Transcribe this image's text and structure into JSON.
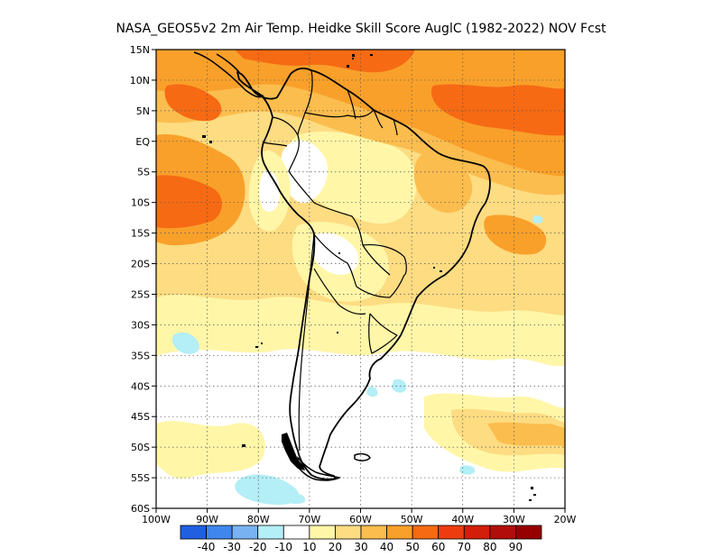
{
  "title": "NASA_GEOS5v2  2m Air Temp. Heidke Skill Score AuglC (1982-2022) NOV Fcst",
  "map": {
    "lat_labels": [
      "15N",
      "10N",
      "5N",
      "EQ",
      "5S",
      "10S",
      "15S",
      "20S",
      "25S",
      "30S",
      "35S",
      "40S",
      "45S",
      "50S",
      "55S",
      "60S"
    ],
    "lat_values": [
      15,
      10,
      5,
      0,
      -5,
      -10,
      -15,
      -20,
      -25,
      -30,
      -35,
      -40,
      -45,
      -50,
      -55,
      -60
    ],
    "lon_labels": [
      "100W",
      "90W",
      "80W",
      "70W",
      "60W",
      "50W",
      "40W",
      "30W",
      "20W"
    ],
    "lon_values": [
      -100,
      -90,
      -80,
      -70,
      -60,
      -50,
      -40,
      -30,
      -20
    ],
    "lon_range": [
      -100,
      -20
    ],
    "lat_range": [
      -60,
      15
    ],
    "grid": "dotted",
    "features": [
      "South America coastline",
      "country borders",
      "skill score shading"
    ]
  },
  "colorbar": {
    "labels": [
      "-40",
      "-30",
      "-20",
      "-10",
      "10",
      "20",
      "30",
      "40",
      "50",
      "60",
      "70",
      "80",
      "90"
    ],
    "colors": [
      "#1f5fe0",
      "#3f87ee",
      "#78b2f2",
      "#b4eef6",
      "#ffffff",
      "#fff6a8",
      "#fddc82",
      "#fbbd4e",
      "#f9a02a",
      "#f66a14",
      "#ee3c10",
      "#d21e0a",
      "#b20d0a",
      "#960000"
    ]
  },
  "shading": {
    "palette": {
      "white": "#ffffff",
      "pale": "#fff6a8",
      "c20": "#fddc82",
      "c30": "#fbbd4e",
      "c40": "#f9a02a",
      "c50": "#f66a14",
      "neg": "#b4eef6"
    }
  }
}
